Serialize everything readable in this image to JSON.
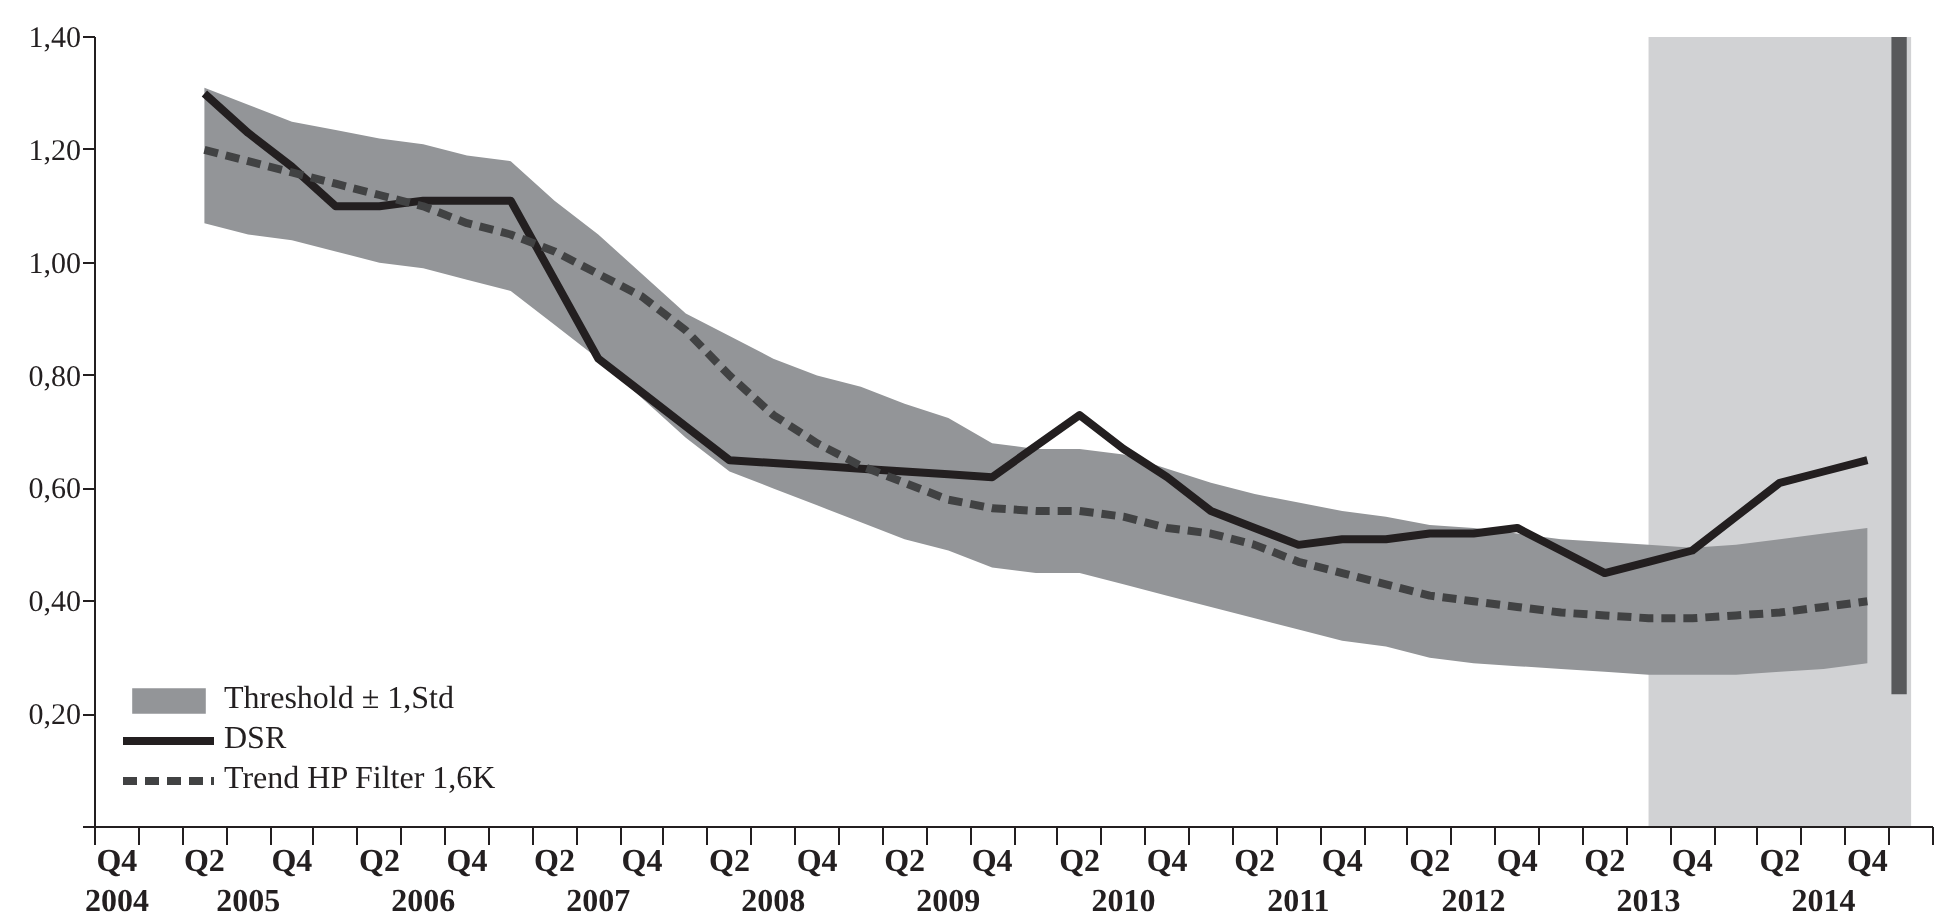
{
  "chart_data": {
    "type": "line",
    "categories": [
      "Q4",
      null,
      "Q2",
      null,
      "Q4",
      null,
      "Q2",
      null,
      "Q4",
      null,
      "Q2",
      null,
      "Q4",
      null,
      "Q2",
      null,
      "Q4",
      null,
      "Q2",
      null,
      "Q4",
      null,
      "Q2",
      null,
      "Q4",
      null,
      "Q2",
      null,
      "Q4",
      null,
      "Q2",
      null,
      "Q4",
      null,
      "Q2",
      null,
      "Q4",
      null,
      "Q2",
      null,
      "Q4",
      null
    ],
    "annotations": [
      "2004",
      "2005",
      "2006",
      "2007",
      "2008",
      "2009",
      "2010",
      "2011",
      "2012",
      "2013",
      "2014"
    ],
    "ylim": [
      0,
      1.4
    ],
    "yticks": [
      {
        "value": 0,
        "label": null
      },
      {
        "value": 0.2,
        "label": "0,20"
      },
      {
        "value": 0.4,
        "label": "0,40"
      },
      {
        "value": 0.6,
        "label": "0,60"
      },
      {
        "value": 0.8,
        "label": "0,80"
      },
      {
        "value": 1.0,
        "label": "1,00"
      },
      {
        "value": 1.2,
        "label": "1,20"
      },
      {
        "value": 1.4,
        "label": "1,40"
      }
    ],
    "legend": "bottom left",
    "series": [
      {
        "name": "Threshold ± 1,Std",
        "type": "area",
        "color": "#939598",
        "values": [
          null,
          null,
          null,
          null,
          null,
          null,
          null,
          null,
          null,
          null,
          null,
          null,
          null,
          null,
          null,
          null,
          null,
          null,
          null,
          null,
          null,
          null,
          null,
          null,
          null,
          null,
          null,
          null,
          null,
          null,
          null,
          null,
          null,
          null,
          null,
          null,
          null,
          null,
          null,
          null,
          null,
          null
        ],
        "lower": [
          null,
          null,
          1.07,
          1.05,
          1.04,
          1.02,
          1.0,
          0.99,
          0.97,
          0.95,
          0.89,
          0.83,
          0.76,
          0.69,
          0.63,
          0.6,
          0.57,
          0.54,
          0.51,
          0.49,
          0.46,
          0.45,
          0.45,
          0.43,
          0.41,
          0.39,
          0.37,
          0.35,
          0.33,
          0.32,
          0.3,
          0.29,
          0.285,
          0.28,
          0.275,
          0.27,
          0.27,
          0.27,
          0.275,
          0.28,
          0.29,
          null
        ],
        "upper": [
          null,
          null,
          1.31,
          1.28,
          1.25,
          1.235,
          1.22,
          1.21,
          1.19,
          1.18,
          1.11,
          1.05,
          0.98,
          0.91,
          0.87,
          0.83,
          0.8,
          0.78,
          0.75,
          0.725,
          0.68,
          0.67,
          0.67,
          0.66,
          0.635,
          0.61,
          0.59,
          0.575,
          0.56,
          0.55,
          0.535,
          0.53,
          0.52,
          0.51,
          0.505,
          0.5,
          0.495,
          0.5,
          0.51,
          0.52,
          0.53,
          null
        ]
      },
      {
        "name": "DSR",
        "color": "#231f20",
        "line_style": "solid",
        "values": [
          null,
          null,
          1.3,
          1.23,
          1.17,
          1.1,
          1.1,
          1.11,
          1.11,
          1.11,
          0.97,
          0.83,
          0.77,
          0.71,
          0.65,
          0.645,
          0.64,
          0.635,
          0.63,
          0.625,
          0.62,
          0.675,
          0.73,
          0.67,
          0.62,
          0.56,
          0.53,
          0.5,
          0.51,
          0.51,
          0.52,
          0.52,
          0.53,
          0.49,
          0.45,
          0.47,
          0.49,
          0.55,
          0.61,
          0.63,
          0.65,
          null
        ]
      },
      {
        "name": "Trend HP Filter 1,6K",
        "color": "#414243",
        "line_style": "dashed",
        "values": [
          null,
          null,
          1.2,
          1.18,
          1.16,
          1.14,
          1.12,
          1.1,
          1.07,
          1.05,
          1.02,
          0.98,
          0.94,
          0.88,
          0.8,
          0.73,
          0.68,
          0.64,
          0.61,
          0.58,
          0.565,
          0.56,
          0.56,
          0.55,
          0.53,
          0.52,
          0.5,
          0.47,
          0.45,
          0.43,
          0.41,
          0.4,
          0.39,
          0.38,
          0.375,
          0.37,
          0.37,
          0.375,
          0.38,
          0.39,
          0.4,
          null
        ]
      }
    ]
  }
}
